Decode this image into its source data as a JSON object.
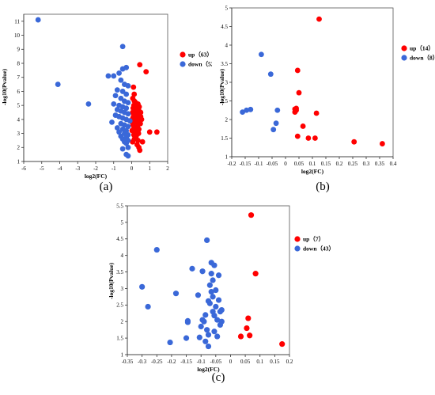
{
  "chart_data": [
    {
      "id": "a",
      "type": "scatter",
      "panel_label": "(a)",
      "xlabel": "log2(FC)",
      "ylabel": "-log10(Pvalue)",
      "xlim": [
        -6,
        2
      ],
      "ylim": [
        1,
        11.5
      ],
      "xticks": [
        -6,
        -5,
        -4,
        -3,
        -2,
        -1,
        0,
        1,
        2
      ],
      "yticks": [
        1,
        2,
        3,
        4,
        5,
        6,
        7,
        8,
        9,
        10,
        11
      ],
      "legend_position": "right",
      "series": [
        {
          "name": "up（63）",
          "color": "#ff0000",
          "points": [
            [
              0.1,
              4.2
            ],
            [
              0.15,
              3.9
            ],
            [
              0.05,
              4.5
            ],
            [
              0.2,
              4.7
            ],
            [
              0.12,
              5.0
            ],
            [
              0.25,
              4.3
            ],
            [
              0.3,
              4.1
            ],
            [
              0.08,
              3.6
            ],
            [
              0.18,
              3.4
            ],
            [
              0.22,
              5.2
            ],
            [
              0.28,
              4.8
            ],
            [
              0.35,
              4.4
            ],
            [
              0.4,
              4.6
            ],
            [
              0.02,
              3.8
            ],
            [
              0.06,
              5.5
            ],
            [
              0.14,
              5.8
            ],
            [
              0.1,
              6.3
            ],
            [
              0.2,
              3.2
            ],
            [
              0.32,
              3.5
            ],
            [
              0.38,
              3.0
            ],
            [
              0.42,
              4.9
            ],
            [
              0.25,
              2.8
            ],
            [
              0.15,
              2.6
            ],
            [
              0.05,
              2.4
            ],
            [
              0.3,
              2.2
            ],
            [
              0.4,
              2.0
            ],
            [
              0.45,
              1.8
            ],
            [
              0.35,
              2.5
            ],
            [
              0.5,
              4.2
            ],
            [
              0.48,
              3.7
            ],
            [
              0.45,
              4.5
            ],
            [
              0.08,
              4.8
            ],
            [
              0.03,
              4.0
            ],
            [
              0.12,
              4.4
            ],
            [
              0.18,
              4.1
            ],
            [
              0.22,
              3.9
            ],
            [
              0.27,
              4.0
            ],
            [
              0.33,
              4.3
            ],
            [
              0.38,
              4.7
            ],
            [
              0.43,
              3.9
            ],
            [
              0.5,
              4.5
            ],
            [
              0.55,
              4.0
            ],
            [
              0.15,
              5.3
            ],
            [
              0.25,
              5.0
            ],
            [
              0.35,
              5.1
            ],
            [
              0.1,
              3.3
            ],
            [
              0.2,
              3.0
            ],
            [
              0.3,
              3.8
            ],
            [
              0.4,
              3.3
            ],
            [
              0.07,
              4.1
            ],
            [
              0.17,
              4.6
            ],
            [
              0.27,
              4.4
            ],
            [
              0.37,
              4.0
            ],
            [
              0.47,
              4.1
            ],
            [
              0.12,
              2.9
            ],
            [
              0.22,
              2.7
            ],
            [
              0.02,
              3.2
            ],
            [
              0.32,
              4.9
            ],
            [
              0.45,
              7.9
            ],
            [
              0.8,
              7.4
            ],
            [
              1.0,
              3.1
            ],
            [
              1.4,
              3.1
            ],
            [
              0.6,
              2.4
            ]
          ]
        },
        {
          "name": "down（52）",
          "color": "#3a68d8",
          "points": [
            [
              -5.2,
              11.1
            ],
            [
              -4.1,
              6.5
            ],
            [
              -2.4,
              5.1
            ],
            [
              -0.5,
              9.2
            ],
            [
              -0.3,
              7.7
            ],
            [
              -0.5,
              7.6
            ],
            [
              -0.7,
              7.3
            ],
            [
              -1.0,
              7.1
            ],
            [
              -1.3,
              7.1
            ],
            [
              -0.6,
              6.8
            ],
            [
              -0.4,
              6.5
            ],
            [
              -0.2,
              6.4
            ],
            [
              -0.8,
              6.1
            ],
            [
              -0.5,
              6.0
            ],
            [
              -0.3,
              5.8
            ],
            [
              -0.9,
              5.7
            ],
            [
              -0.6,
              5.5
            ],
            [
              -0.4,
              5.3
            ],
            [
              -0.2,
              5.2
            ],
            [
              -1.0,
              5.1
            ],
            [
              -0.7,
              5.0
            ],
            [
              -0.5,
              4.9
            ],
            [
              -0.3,
              4.8
            ],
            [
              -0.8,
              4.7
            ],
            [
              -0.6,
              4.6
            ],
            [
              -0.4,
              4.5
            ],
            [
              -0.2,
              4.4
            ],
            [
              -0.9,
              4.3
            ],
            [
              -0.7,
              4.2
            ],
            [
              -0.5,
              4.1
            ],
            [
              -0.3,
              4.0
            ],
            [
              -0.1,
              3.9
            ],
            [
              -0.6,
              3.7
            ],
            [
              -0.4,
              3.6
            ],
            [
              -0.2,
              3.5
            ],
            [
              -0.8,
              3.4
            ],
            [
              -0.5,
              3.3
            ],
            [
              -0.3,
              3.2
            ],
            [
              -0.7,
              3.1
            ],
            [
              -0.4,
              3.0
            ],
            [
              -0.2,
              2.9
            ],
            [
              -0.6,
              2.8
            ],
            [
              -0.3,
              2.7
            ],
            [
              -0.5,
              2.6
            ],
            [
              -0.2,
              2.5
            ],
            [
              -0.4,
              2.4
            ],
            [
              -0.3,
              2.3
            ],
            [
              -0.2,
              2.0
            ],
            [
              -0.5,
              1.9
            ],
            [
              -0.3,
              1.5
            ],
            [
              -0.2,
              1.4
            ],
            [
              -1.1,
              3.8
            ]
          ]
        }
      ]
    },
    {
      "id": "b",
      "type": "scatter",
      "panel_label": "(b)",
      "xlabel": "log2(FC)",
      "ylabel": "-log10(Pvalue)",
      "xlim": [
        -0.2,
        0.4
      ],
      "ylim": [
        1,
        5
      ],
      "xticks": [
        -0.2,
        -0.15,
        -0.1,
        -0.05,
        0,
        0.05,
        0.1,
        0.15,
        0.2,
        0.25,
        0.3,
        0.35,
        0.4
      ],
      "ytick_labels": [
        "1",
        "1.5",
        "2",
        "2.5",
        "3",
        "3.5",
        "4",
        "4.5",
        "5"
      ],
      "legend_position": "right",
      "series": [
        {
          "name": "up（14）",
          "color": "#ff0000",
          "points": [
            [
              0.125,
              4.7
            ],
            [
              0.045,
              3.32
            ],
            [
              0.05,
              2.72
            ],
            [
              0.04,
              2.3
            ],
            [
              0.04,
              2.25
            ],
            [
              0.035,
              2.2
            ],
            [
              0.115,
              2.17
            ],
            [
              0.065,
              1.82
            ],
            [
              0.045,
              1.55
            ],
            [
              0.085,
              1.5
            ],
            [
              0.11,
              1.5
            ],
            [
              0.255,
              1.4
            ],
            [
              0.36,
              1.35
            ],
            [
              0.035,
              2.28
            ]
          ]
        },
        {
          "name": "down（8）",
          "color": "#3a68d8",
          "points": [
            [
              -0.09,
              3.75
            ],
            [
              -0.055,
              3.22
            ],
            [
              -0.13,
              2.27
            ],
            [
              -0.145,
              2.25
            ],
            [
              -0.16,
              2.2
            ],
            [
              -0.03,
              2.25
            ],
            [
              -0.035,
              1.9
            ],
            [
              -0.045,
              1.73
            ]
          ]
        }
      ]
    },
    {
      "id": "c",
      "type": "scatter",
      "panel_label": "(c)",
      "xlabel": "log2(FC)",
      "ylabel": "-log10(Pvalue)",
      "xlim": [
        -0.35,
        0.2
      ],
      "ylim": [
        1,
        5.5
      ],
      "xticks": [
        -0.35,
        -0.3,
        -0.25,
        -0.2,
        -0.15,
        -0.1,
        -0.05,
        0,
        0.05,
        0.1,
        0.15,
        0.2
      ],
      "ytick_labels": [
        "1",
        "1.5",
        "2",
        "2.5",
        "3",
        "3.5",
        "4",
        "4.5",
        "5",
        "5.5"
      ],
      "legend_position": "right",
      "series": [
        {
          "name": "up（7）",
          "color": "#ff0000",
          "points": [
            [
              0.07,
              5.22
            ],
            [
              0.085,
              3.45
            ],
            [
              0.06,
              2.1
            ],
            [
              0.055,
              1.8
            ],
            [
              0.065,
              1.58
            ],
            [
              0.035,
              1.55
            ],
            [
              0.175,
              1.32
            ]
          ]
        },
        {
          "name": "down（43）",
          "color": "#3a68d8",
          "points": [
            [
              -0.25,
              4.17
            ],
            [
              -0.3,
              3.05
            ],
            [
              -0.28,
              2.45
            ],
            [
              -0.185,
              2.85
            ],
            [
              -0.205,
              1.37
            ],
            [
              -0.145,
              2.02
            ],
            [
              -0.145,
              1.98
            ],
            [
              -0.15,
              1.5
            ],
            [
              -0.13,
              3.6
            ],
            [
              -0.11,
              2.8
            ],
            [
              -0.105,
              1.52
            ],
            [
              -0.1,
              1.85
            ],
            [
              -0.095,
              2.05
            ],
            [
              -0.095,
              3.52
            ],
            [
              -0.09,
              2.0
            ],
            [
              -0.085,
              2.2
            ],
            [
              -0.085,
              1.4
            ],
            [
              -0.08,
              4.46
            ],
            [
              -0.08,
              1.75
            ],
            [
              -0.075,
              1.6
            ],
            [
              -0.075,
              2.62
            ],
            [
              -0.07,
              3.1
            ],
            [
              -0.07,
              2.55
            ],
            [
              -0.065,
              3.78
            ],
            [
              -0.065,
              3.45
            ],
            [
              -0.065,
              2.9
            ],
            [
              -0.06,
              3.25
            ],
            [
              -0.06,
              2.75
            ],
            [
              -0.055,
              2.18
            ],
            [
              -0.055,
              1.7
            ],
            [
              -0.055,
              3.7
            ],
            [
              -0.05,
              2.95
            ],
            [
              -0.05,
              2.45
            ],
            [
              -0.045,
              2.05
            ],
            [
              -0.045,
              1.55
            ],
            [
              -0.04,
              3.4
            ],
            [
              -0.04,
              2.65
            ],
            [
              -0.035,
              2.3
            ],
            [
              -0.035,
              1.9
            ],
            [
              -0.03,
              2.0
            ],
            [
              -0.03,
              2.35
            ],
            [
              -0.06,
              2.3
            ],
            [
              -0.075,
              1.25
            ]
          ]
        }
      ]
    }
  ]
}
